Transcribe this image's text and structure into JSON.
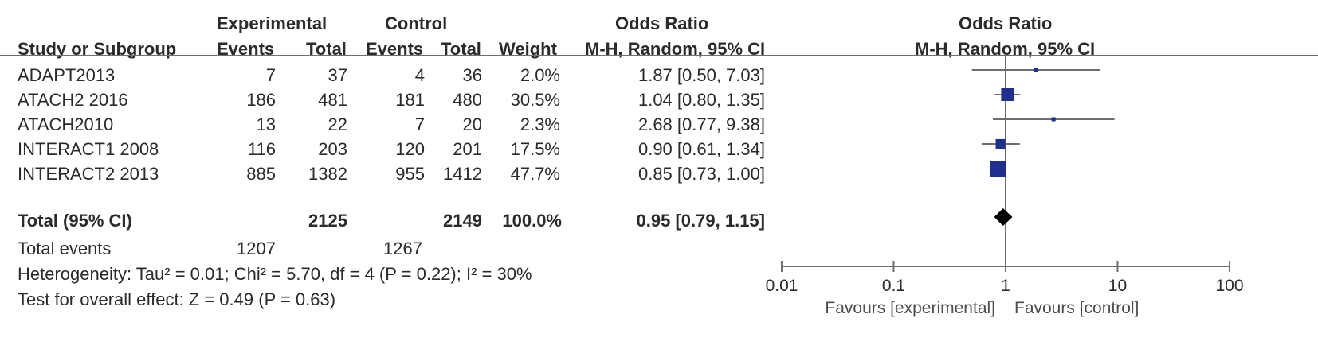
{
  "headers": {
    "experimental": "Experimental",
    "control": "Control",
    "or_top": "Odds Ratio",
    "or_plot_top": "Odds Ratio",
    "study": "Study or Subgroup",
    "events_e": "Events",
    "total_e": "Total",
    "events_c": "Events",
    "total_c": "Total",
    "weight": "Weight",
    "method": "M-H, Random, 95% CI",
    "method_plot": "M-H, Random, 95% CI"
  },
  "studies": [
    {
      "name": "ADAPT2013",
      "e_events": "7",
      "e_total": "37",
      "c_events": "4",
      "c_total": "36",
      "weight": "2.0%",
      "ci": "1.87 [0.50, 7.03]"
    },
    {
      "name": "ATACH2 2016",
      "e_events": "186",
      "e_total": "481",
      "c_events": "181",
      "c_total": "480",
      "weight": "30.5%",
      "ci": "1.04 [0.80, 1.35]"
    },
    {
      "name": "ATACH2010",
      "e_events": "13",
      "e_total": "22",
      "c_events": "7",
      "c_total": "20",
      "weight": "2.3%",
      "ci": "2.68 [0.77, 9.38]"
    },
    {
      "name": "INTERACT1 2008",
      "e_events": "116",
      "e_total": "203",
      "c_events": "120",
      "c_total": "201",
      "weight": "17.5%",
      "ci": "0.90 [0.61, 1.34]"
    },
    {
      "name": "INTERACT2 2013",
      "e_events": "885",
      "e_total": "1382",
      "c_events": "955",
      "c_total": "1412",
      "weight": "47.7%",
      "ci": "0.85 [0.73, 1.00]"
    }
  ],
  "total": {
    "label": "Total (95% CI)",
    "e_total": "2125",
    "c_total": "2149",
    "weight": "100.0%",
    "ci": "0.95 [0.79, 1.15]"
  },
  "total_events": {
    "label": "Total events",
    "e": "1207",
    "c": "1267"
  },
  "heterogeneity": "Heterogeneity: Tau² = 0.01; Chi² = 5.70, df = 4 (P = 0.22); I² = 30%",
  "overall_effect": "Test for overall effect: Z = 0.49 (P = 0.63)",
  "favours_left": "Favours [experimental]",
  "favours_right": "Favours [control]",
  "colors": {
    "marker": "#1f2f8f",
    "line": "#6f6f6f",
    "text": "#2b2b2b"
  },
  "chart_data": {
    "type": "forest",
    "scale": "log",
    "xlim": [
      0.01,
      100
    ],
    "ticks": [
      0.01,
      0.1,
      1,
      10,
      100
    ],
    "tick_labels": [
      "0.01",
      "0.1",
      "1",
      "10",
      "100"
    ],
    "studies": [
      {
        "name": "ADAPT2013",
        "or": 1.87,
        "lo": 0.5,
        "hi": 7.03,
        "weight": 2.0
      },
      {
        "name": "ATACH2 2016",
        "or": 1.04,
        "lo": 0.8,
        "hi": 1.35,
        "weight": 30.5
      },
      {
        "name": "ATACH2010",
        "or": 2.68,
        "lo": 0.77,
        "hi": 9.38,
        "weight": 2.3
      },
      {
        "name": "INTERACT1 2008",
        "or": 0.9,
        "lo": 0.61,
        "hi": 1.34,
        "weight": 17.5
      },
      {
        "name": "INTERACT2 2013",
        "or": 0.85,
        "lo": 0.73,
        "hi": 1.0,
        "weight": 47.7
      }
    ],
    "pooled": {
      "or": 0.95,
      "lo": 0.79,
      "hi": 1.15
    }
  }
}
